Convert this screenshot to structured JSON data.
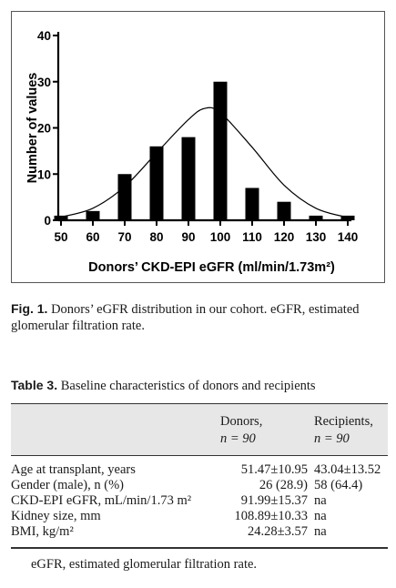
{
  "figure": {
    "label": "Fig. 1.",
    "caption": "Donors’ eGFR distribution in our cohort. eGFR, estimated glomerular filtration rate."
  },
  "chart_data": {
    "type": "bar",
    "title": "",
    "xlabel": "Donors’ CKD-EPI eGFR (ml/min/1.73m²)",
    "ylabel": "Number of values",
    "categories": [
      "50",
      "60",
      "70",
      "80",
      "90",
      "100",
      "110",
      "120",
      "130",
      "140"
    ],
    "values": [
      1,
      2,
      10,
      16,
      18,
      30,
      7,
      4,
      1,
      1
    ],
    "xlim": [
      50,
      140
    ],
    "ylim": [
      0,
      40
    ],
    "yticks": [
      0,
      10,
      20,
      30,
      40
    ],
    "grid": false,
    "legend": "none",
    "overlay": {
      "type": "normal-curve",
      "points": [
        [
          50,
          0.7
        ],
        [
          60,
          2.6
        ],
        [
          70,
          7.3
        ],
        [
          80,
          14.6
        ],
        [
          90,
          21.8
        ],
        [
          95,
          24.2
        ],
        [
          100,
          23.3
        ],
        [
          110,
          15.8
        ],
        [
          120,
          7.6
        ],
        [
          130,
          2.6
        ],
        [
          140,
          0.6
        ]
      ]
    }
  },
  "table": {
    "label": "Table 3.",
    "title": "Baseline characteristics of donors and recipients",
    "columns": [
      {
        "name": "Donors,",
        "n": "n = 90"
      },
      {
        "name": "Recipients,",
        "n": "n = 90"
      }
    ],
    "rows": [
      {
        "label": "Age at transplant, years",
        "donors": "51.47±10.95",
        "recipients": "43.04±13.52"
      },
      {
        "label": "Gender (male), n (%)",
        "donors": "26 (28.9)",
        "recipients": "58 (64.4)"
      },
      {
        "label": "CKD-EPI eGFR, mL/min/1.73 m²",
        "donors": "91.99±15.37",
        "recipients": "na"
      },
      {
        "label": "Kidney size, mm",
        "donors": "108.89±10.33",
        "recipients": "na"
      },
      {
        "label": "BMI, kg/m²",
        "donors": "24.28±3.57",
        "recipients": "na"
      }
    ],
    "footnote": "eGFR, estimated glomerular filtration rate."
  }
}
